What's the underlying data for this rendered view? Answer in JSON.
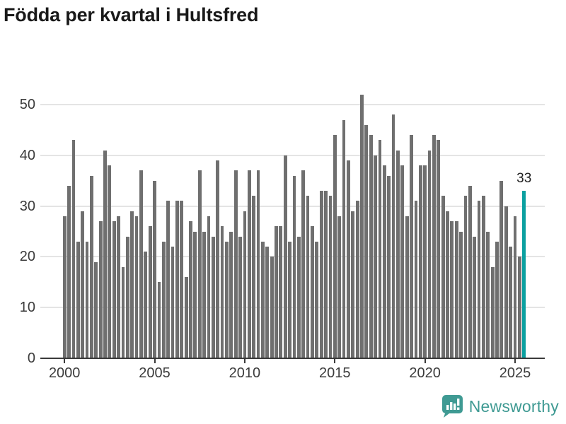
{
  "title": "Födda per kvartal i Hultsfred",
  "chart_data": {
    "type": "bar",
    "title": "Födda per kvartal i Hultsfred",
    "x_unit": "quarter",
    "x_start_year": 2000,
    "values": [
      28,
      34,
      43,
      23,
      29,
      23,
      36,
      19,
      27,
      41,
      38,
      27,
      28,
      18,
      24,
      29,
      28,
      37,
      21,
      26,
      35,
      15,
      23,
      31,
      22,
      31,
      31,
      16,
      27,
      25,
      37,
      25,
      28,
      24,
      39,
      26,
      23,
      25,
      37,
      24,
      29,
      37,
      32,
      37,
      23,
      22,
      20,
      26,
      26,
      40,
      23,
      36,
      24,
      37,
      32,
      26,
      23,
      33,
      33,
      32,
      44,
      28,
      47,
      39,
      29,
      31,
      52,
      46,
      44,
      40,
      43,
      38,
      36,
      48,
      41,
      38,
      28,
      44,
      31,
      38,
      38,
      41,
      44,
      43,
      32,
      29,
      27,
      27,
      25,
      32,
      34,
      24,
      31,
      32,
      25,
      18,
      23,
      35,
      30,
      22,
      28,
      20,
      33
    ],
    "highlight": {
      "index": 102,
      "label": "33"
    },
    "yticks": [
      0,
      10,
      20,
      30,
      40,
      50
    ],
    "xticks": [
      2000,
      2005,
      2010,
      2015,
      2020,
      2025
    ],
    "ylim": [
      0,
      52
    ],
    "grid": true,
    "legend": "none",
    "bar_color": "#6f6f6f",
    "highlight_color": "#0ba0a0"
  },
  "brand": {
    "name": "Newsworthy",
    "color": "#3f9a93"
  }
}
